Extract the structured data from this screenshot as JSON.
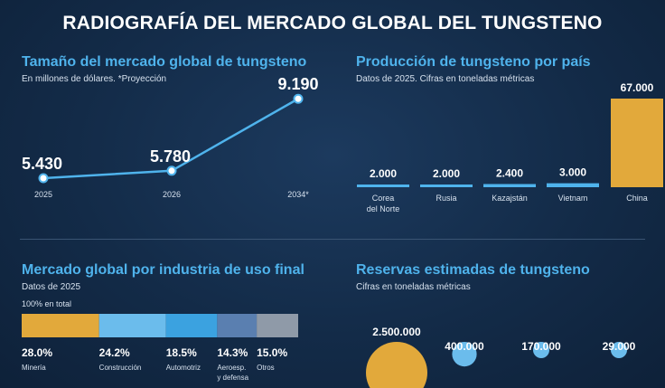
{
  "title": "RADIOGRAFÍA DEL MERCADO GLOBAL DEL TUNGSTENO",
  "chart_data": [
    {
      "type": "line",
      "title": "Tamaño del mercado global de tungsteno",
      "subtitle": "En millones de dólares. *Proyección",
      "x": [
        "2025",
        "2026",
        "2034*"
      ],
      "values": [
        5430,
        5780,
        9190
      ],
      "value_labels": [
        "5.430",
        "5.780",
        "9.190"
      ],
      "color": "#4fb3ec"
    },
    {
      "type": "bar",
      "title": "Producción de tungsteno por país",
      "subtitle": "Datos de 2025. Cifras en toneladas métricas",
      "categories": [
        "Corea del Norte",
        "Rusia",
        "Kazajstán",
        "Vietnam",
        "China"
      ],
      "category_lines": [
        [
          "Corea",
          "del Norte"
        ],
        [
          "Rusia"
        ],
        [
          "Kazajstán"
        ],
        [
          "Vietnam"
        ],
        [
          "China"
        ]
      ],
      "values": [
        2000,
        2000,
        2400,
        3000,
        67000
      ],
      "value_labels": [
        "2.000",
        "2.000",
        "2.400",
        "3.000",
        "67.000"
      ],
      "colors": [
        "#4fb3ec",
        "#4fb3ec",
        "#4fb3ec",
        "#4fb3ec",
        "#e2a93b"
      ]
    },
    {
      "type": "bar",
      "stacked": true,
      "title": "Mercado global por industria de uso final",
      "subtitle": "Datos de 2025",
      "total_label": "100% en total",
      "categories": [
        "Minería",
        "Construcción",
        "Automotriz",
        "Aeroesp. y defensa",
        "Otros"
      ],
      "category_lines": [
        [
          "Minería"
        ],
        [
          "Construcción"
        ],
        [
          "Automotriz"
        ],
        [
          "Aeroesp.",
          "y defensa"
        ],
        [
          "Otros"
        ]
      ],
      "values": [
        28.0,
        24.2,
        18.5,
        14.3,
        15.0
      ],
      "value_labels": [
        "28.0%",
        "24.2%",
        "18.5%",
        "14.3%",
        "15.0%"
      ],
      "colors": [
        "#e2a93b",
        "#6bbcec",
        "#3ba2e0",
        "#5a7fb0",
        "#8f9aa8"
      ]
    },
    {
      "type": "scatter",
      "title": "Reservas estimadas de tungsteno",
      "subtitle": "Cifras en toneladas métricas",
      "values": [
        2500000,
        400000,
        170000,
        29000
      ],
      "value_labels": [
        "2.500.000",
        "400.000",
        "170.000",
        "29.000"
      ],
      "colors": [
        "#e2a93b",
        "#6bbcec",
        "#6bbcec",
        "#6bbcec"
      ]
    }
  ]
}
